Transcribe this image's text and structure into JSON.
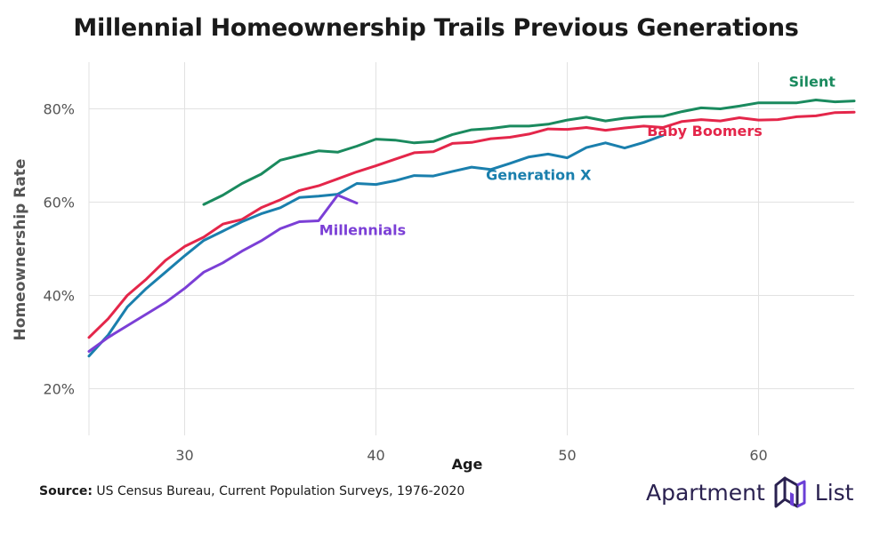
{
  "page": {
    "source_label": "Source:",
    "source_text": " US Census Bureau, Current Population Surveys, 1976-2020"
  },
  "brand": {
    "name_part1": "Apartment",
    "name_part2": "List",
    "logo_icon": "apartment-list-logo-icon",
    "color": "#2a2150",
    "logo_color": "#6b3fd6"
  },
  "chart_data": {
    "type": "line",
    "title": "Millennial Homeownership Trails Previous Generations",
    "xlabel": "Age",
    "ylabel": "Homeownership Rate",
    "xlim": [
      25,
      65
    ],
    "ylim": [
      10,
      90
    ],
    "xticks": [
      30,
      40,
      50,
      60
    ],
    "xtick_labels": [
      "30",
      "40",
      "50",
      "60"
    ],
    "yticks": [
      20,
      40,
      60,
      80
    ],
    "ytick_labels": [
      "20%",
      "40%",
      "60%",
      "80%"
    ],
    "grid": true,
    "series": [
      {
        "name": "Silent",
        "color": "#1a8a5e",
        "x": [
          31,
          32,
          33,
          34,
          35,
          36,
          37,
          38,
          39,
          40,
          41,
          42,
          43,
          44,
          45,
          46,
          47,
          48,
          49,
          50,
          51,
          52,
          53,
          54,
          55,
          56,
          57,
          58,
          59,
          60,
          61,
          62,
          63,
          64,
          65
        ],
        "y": [
          59.5,
          61.5,
          64,
          66,
          69,
          70,
          71,
          70.7,
          72,
          73.5,
          73.3,
          72.7,
          73,
          74.5,
          75.5,
          75.8,
          76.3,
          76.3,
          76.7,
          77.6,
          78.2,
          77.4,
          78,
          78.3,
          78.4,
          79.4,
          80.2,
          80,
          80.6,
          81.3,
          81.3,
          81.3,
          81.9,
          81.5,
          81.7
        ]
      },
      {
        "name": "Baby Boomers",
        "color": "#e4264a",
        "x": [
          25,
          26,
          27,
          28,
          29,
          30,
          31,
          32,
          33,
          34,
          35,
          36,
          37,
          38,
          39,
          40,
          41,
          42,
          43,
          44,
          45,
          46,
          47,
          48,
          49,
          50,
          51,
          52,
          53,
          54,
          55,
          56,
          57,
          58,
          59,
          60,
          61,
          62,
          63,
          64,
          65
        ],
        "y": [
          31,
          35,
          40,
          43.5,
          47.5,
          50.5,
          52.5,
          55.3,
          56.3,
          58.8,
          60.5,
          62.5,
          63.5,
          65,
          66.5,
          67.8,
          69.2,
          70.6,
          70.8,
          72.6,
          72.8,
          73.6,
          73.9,
          74.6,
          75.7,
          75.6,
          76,
          75.4,
          75.9,
          76.3,
          76,
          77.3,
          77.7,
          77.4,
          78.1,
          77.6,
          77.7,
          78.3,
          78.5,
          79.2,
          79.3
        ]
      },
      {
        "name": "Generation X",
        "color": "#1a7fad",
        "x": [
          25,
          26,
          27,
          28,
          29,
          30,
          31,
          32,
          33,
          34,
          35,
          36,
          37,
          38,
          39,
          40,
          41,
          42,
          43,
          44,
          45,
          46,
          47,
          48,
          49,
          50,
          51,
          52,
          53,
          54,
          55
        ],
        "y": [
          27,
          31.5,
          37.5,
          41.5,
          45,
          48.5,
          51.8,
          53.8,
          55.8,
          57.5,
          58.8,
          61,
          61.3,
          61.7,
          64,
          63.8,
          64.6,
          65.7,
          65.6,
          66.6,
          67.5,
          67,
          68.3,
          69.7,
          70.3,
          69.5,
          71.7,
          72.7,
          71.6,
          72.8,
          74.3
        ]
      },
      {
        "name": "Millennials",
        "color": "#7b3fd6",
        "x": [
          25,
          26,
          27,
          28,
          29,
          30,
          31,
          32,
          33,
          34,
          35,
          36,
          37,
          38,
          39
        ],
        "y": [
          28,
          31,
          33.5,
          36,
          38.5,
          41.5,
          45,
          47,
          49.5,
          51.7,
          54.3,
          55.8,
          56,
          61.5,
          59.8
        ]
      }
    ]
  }
}
